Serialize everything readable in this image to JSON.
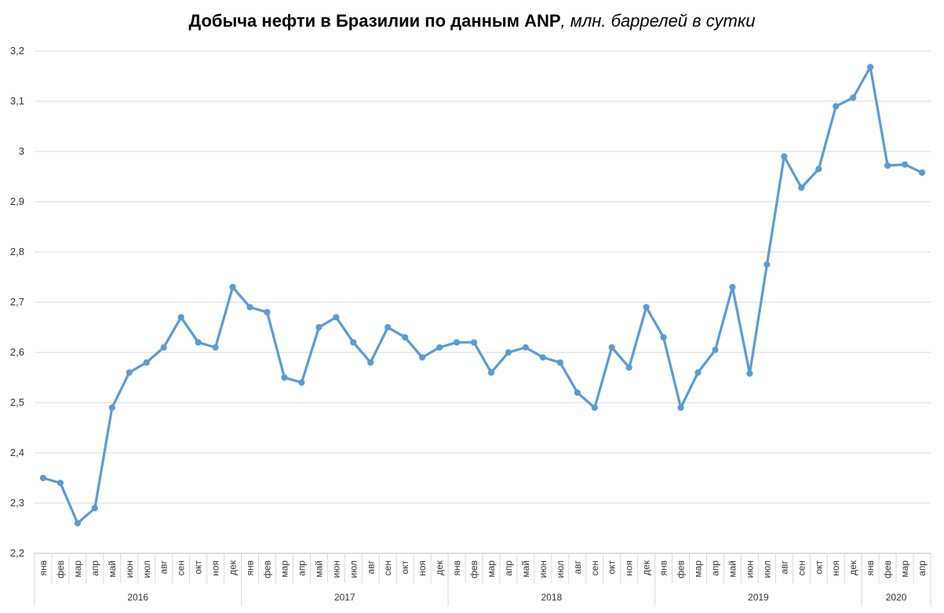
{
  "chart_data": {
    "type": "line",
    "title": "Добыча нефти в Бразилии по данным ANP",
    "subtitle": ", млн. баррелей в сутки",
    "ylim": [
      2.2,
      3.2
    ],
    "yticks": [
      "2,2",
      "2,3",
      "2,4",
      "2,5",
      "2,6",
      "2,7",
      "2,8",
      "2,9",
      "3",
      "3,1",
      "3,2"
    ],
    "grid": true,
    "color": "#5B9BD5",
    "months": [
      "янв",
      "фев",
      "мар",
      "апр",
      "май",
      "июн",
      "июл",
      "авг",
      "сен",
      "окт",
      "ноя",
      "дек"
    ],
    "years": [
      {
        "label": "2016",
        "count": 12
      },
      {
        "label": "2017",
        "count": 12
      },
      {
        "label": "2018",
        "count": 12
      },
      {
        "label": "2019",
        "count": 12
      },
      {
        "label": "2020",
        "count": 4
      }
    ],
    "series": [
      {
        "values": [
          2.35,
          2.34,
          2.26,
          2.29,
          2.49,
          2.56,
          2.58,
          2.61,
          2.67,
          2.62,
          2.61,
          2.73,
          2.69,
          2.68,
          2.55,
          2.54,
          2.65,
          2.67,
          2.62,
          2.58,
          2.65,
          2.63,
          2.59,
          2.61,
          2.62,
          2.62,
          2.56,
          2.6,
          2.61,
          2.59,
          2.58,
          2.52,
          2.49,
          2.61,
          2.57,
          2.69,
          2.63,
          2.49,
          2.56,
          2.605,
          2.73,
          2.558,
          2.775,
          2.99,
          2.928,
          2.965,
          3.09,
          3.107,
          3.168,
          2.972,
          2.974,
          2.958
        ]
      }
    ]
  }
}
